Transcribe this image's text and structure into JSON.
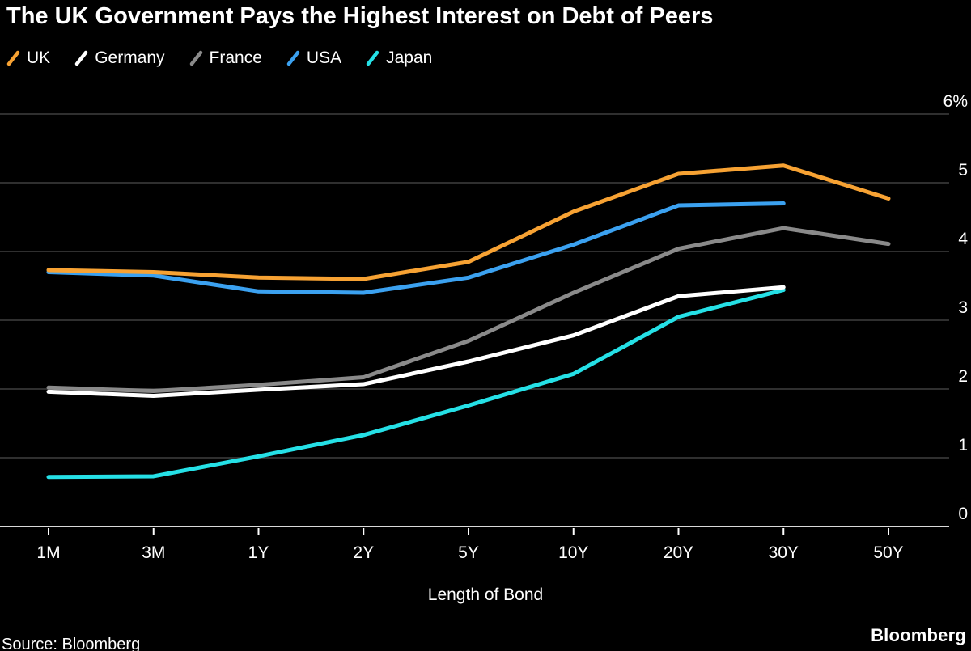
{
  "title": "The UK Government Pays the Highest Interest on Debt of Peers",
  "footer": {
    "source": "Source: Bloomberg",
    "brand": "Bloomberg"
  },
  "colors": {
    "background": "#000000",
    "text": "#ffffff",
    "gridline": "#3f3f3f",
    "baseline": "#d9d9d9",
    "tick": "#ffffff"
  },
  "chart_data": {
    "type": "line",
    "title": "The UK Government Pays the Highest Interest on Debt of Peers",
    "categories": [
      "1M",
      "3M",
      "1Y",
      "2Y",
      "5Y",
      "10Y",
      "20Y",
      "30Y",
      "50Y"
    ],
    "series": [
      {
        "name": "UK",
        "color": "#f7a233",
        "values": [
          3.73,
          3.7,
          3.62,
          3.6,
          3.85,
          4.58,
          5.13,
          5.25,
          4.77
        ]
      },
      {
        "name": "Germany",
        "color": "#ffffff",
        "values": [
          1.96,
          1.9,
          1.99,
          2.07,
          2.4,
          2.78,
          3.35,
          3.48,
          null
        ]
      },
      {
        "name": "France",
        "color": "#8a8a8a",
        "values": [
          2.02,
          1.97,
          2.06,
          2.17,
          2.7,
          3.4,
          4.04,
          4.34,
          4.11
        ]
      },
      {
        "name": "USA",
        "color": "#3ba1f0",
        "values": [
          3.7,
          3.65,
          3.42,
          3.4,
          3.62,
          4.1,
          4.67,
          4.7,
          null
        ]
      },
      {
        "name": "Japan",
        "color": "#25e0e6",
        "values": [
          0.72,
          0.73,
          1.02,
          1.33,
          1.76,
          2.22,
          3.05,
          3.44,
          null
        ]
      }
    ],
    "legend_order": [
      "UK",
      "Germany",
      "France",
      "USA",
      "Japan"
    ],
    "draw_order": [
      "France",
      "USA",
      "Japan",
      "Germany",
      "UK"
    ],
    "xlabel": "Length of Bond",
    "ylabel": "",
    "ylim": [
      0,
      6
    ],
    "y_ticks": [
      0,
      1,
      2,
      3,
      4,
      5,
      6
    ],
    "y_max_tick_label": "6%",
    "grid": "horizontal",
    "legend_position": "top-left",
    "axis_side": "right"
  }
}
